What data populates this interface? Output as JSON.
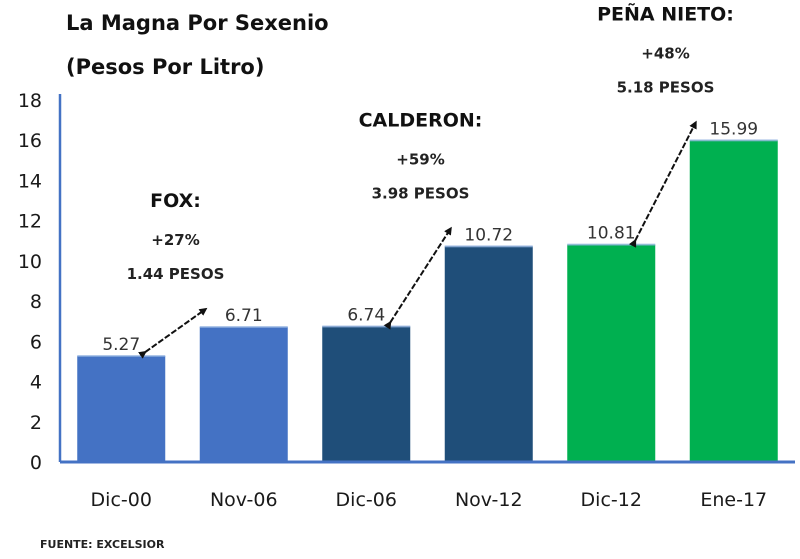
{
  "chart_data": {
    "type": "bar",
    "title": "La Magna Por Sexenio",
    "subtitle": "(Pesos Por Litro)",
    "categories": [
      "Dic-00",
      "Nov-06",
      "Dic-06",
      "Nov-12",
      "Dic-12",
      "Ene-17"
    ],
    "values": [
      5.27,
      6.71,
      6.74,
      10.72,
      10.81,
      15.99
    ],
    "value_labels": [
      "5.27",
      "6.71",
      "6.74",
      "10.72",
      "10.81",
      "15.99"
    ],
    "bar_colors": [
      "#4472C4",
      "#4472C4",
      "#1F4E79",
      "#1F4E79",
      "#00B050",
      "#00B050"
    ],
    "ylim": [
      0,
      18
    ],
    "yticks": [
      "0",
      "2",
      "4",
      "6",
      "8",
      "10",
      "12",
      "14",
      "16",
      "18"
    ],
    "xlabel": "",
    "ylabel": "",
    "grid": false,
    "annotations": [
      {
        "name": "FOX:",
        "change": "+27%",
        "amount": "1.44 PESOS",
        "from": 0,
        "to": 1
      },
      {
        "name": "CALDERON:",
        "change": "+59%",
        "amount": "3.98 PESOS",
        "from": 2,
        "to": 3
      },
      {
        "name": "PEÑA NIETO:",
        "change": "+48%",
        "amount": "5.18 PESOS",
        "from": 4,
        "to": 5
      }
    ],
    "source": "FUENTE: EXCELSIOR",
    "axis_color": "#4472C4"
  }
}
